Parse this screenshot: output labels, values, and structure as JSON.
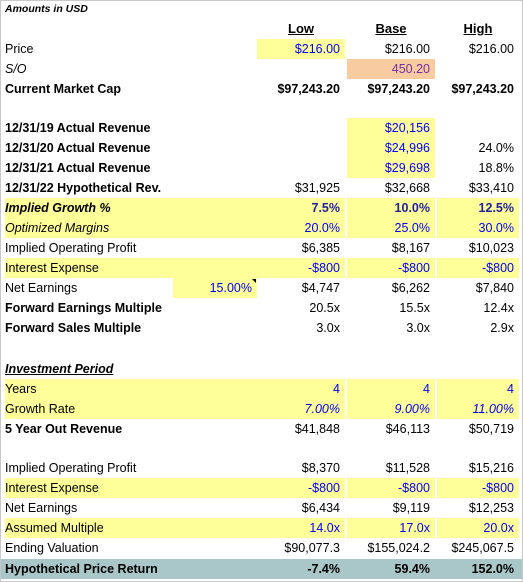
{
  "title": "Amounts in USD",
  "headers": {
    "low": "Low",
    "base": "Base",
    "high": "High"
  },
  "rows": {
    "price": {
      "label": "Price",
      "low": "$216.00",
      "base": "$216.00",
      "high": "$216.00"
    },
    "so": {
      "label": "S/O",
      "base": "450.20"
    },
    "market_cap": {
      "label": "Current Market Cap",
      "low": "$97,243.20",
      "base": "$97,243.20",
      "high": "$97,243.20"
    },
    "rev19": {
      "label": "12/31/19 Actual Revenue",
      "base": "$20,156"
    },
    "rev20": {
      "label": "12/31/20 Actual Revenue",
      "base": "$24,996",
      "high": "24.0%"
    },
    "rev21": {
      "label": "12/31/21 Actual Revenue",
      "base": "$29,698",
      "high": "18.8%"
    },
    "rev22": {
      "label": "12/31/22 Hypothetical Rev.",
      "low": "$31,925",
      "base": "$32,668",
      "high": "$33,410"
    },
    "implied_growth": {
      "label": "Implied Growth %",
      "low": "7.5%",
      "base": "10.0%",
      "high": "12.5%"
    },
    "opt_margins": {
      "label": "Optimized Margins",
      "low": "20.0%",
      "base": "25.0%",
      "high": "30.0%"
    },
    "impl_op_profit": {
      "label": "Implied Operating Profit",
      "low": "$6,385",
      "base": "$8,167",
      "high": "$10,023"
    },
    "interest": {
      "label": "Interest Expense",
      "low": "-$800",
      "base": "-$800",
      "high": "-$800"
    },
    "net_earnings": {
      "label": "Net Earnings",
      "extra": "15.00%",
      "low": "$4,747",
      "base": "$6,262",
      "high": "$7,840"
    },
    "fwd_earn_mult": {
      "label": "Forward Earnings Multiple",
      "low": "20.5x",
      "base": "15.5x",
      "high": "12.4x"
    },
    "fwd_sales_mult": {
      "label": "Forward Sales Multiple",
      "low": "3.0x",
      "base": "3.0x",
      "high": "2.9x"
    },
    "inv_period": {
      "label": "Investment Period"
    },
    "years": {
      "label": "Years",
      "low": "4",
      "base": "4",
      "high": "4"
    },
    "growth_rate": {
      "label": "Growth Rate",
      "low": "7.00%",
      "base": "9.00%",
      "high": "11.00%"
    },
    "five_year_rev": {
      "label": "5 Year Out Revenue",
      "low": "$41,848",
      "base": "$46,113",
      "high": "$50,719"
    },
    "impl_op_profit2": {
      "label": "Implied Operating Profit",
      "low": "$8,370",
      "base": "$11,528",
      "high": "$15,216"
    },
    "interest2": {
      "label": "Interest Expense",
      "low": "-$800",
      "base": "-$800",
      "high": "-$800"
    },
    "net_earnings2": {
      "label": "Net Earnings",
      "low": "$6,434",
      "base": "$9,119",
      "high": "$12,253"
    },
    "assumed_mult": {
      "label": "Assumed Multiple",
      "low": "14.0x",
      "base": "17.0x",
      "high": "20.0x"
    },
    "ending_val": {
      "label": "Ending Valuation",
      "low": "$90,077.3",
      "base": "$155,024.2",
      "high": "$245,067.5"
    },
    "hyp_return": {
      "label": "Hypothetical Price Return",
      "low": "-7.4%",
      "base": "59.4%",
      "high": "152.0%"
    }
  },
  "colors": {
    "input_fill": "#ffff99",
    "so_fill": "#f8cba0",
    "return_fill": "#a9c6c8",
    "input_text": "#0000ee"
  }
}
